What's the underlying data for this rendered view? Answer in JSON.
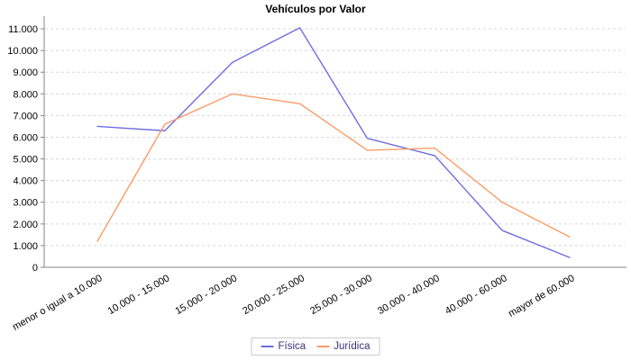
{
  "title": "Vehículos por Valor",
  "chart_data": {
    "type": "line",
    "title": "Vehículos por Valor",
    "xlabel": "",
    "ylabel": "",
    "categories": [
      "menor o igual a 10.000",
      "10.000 - 15.000",
      "15.000 - 20.000",
      "20.000 - 25.000",
      "25.000 - 30.000",
      "30.000 - 40.000",
      "40.000 - 60.000",
      "mayor de 60.000"
    ],
    "series": [
      {
        "name": "Física",
        "color": "#6D6DE2",
        "values": [
          6500,
          6300,
          9450,
          11050,
          5950,
          5150,
          1700,
          450
        ]
      },
      {
        "name": "Jurídica",
        "color": "#FA9C68",
        "values": [
          1200,
          6600,
          8000,
          7550,
          5400,
          5500,
          3000,
          1400
        ]
      }
    ],
    "ylim": [
      0,
      11500
    ],
    "ytick_step": 1000,
    "ytick_labels": [
      "0",
      "1.000",
      "2.000",
      "3.000",
      "4.000",
      "5.000",
      "6.000",
      "7.000",
      "8.000",
      "9.000",
      "10.000",
      "11.000"
    ],
    "grid": "horizontal-dashed",
    "legend_position": "bottom",
    "colors": {
      "axis": "#848484",
      "grid": "#d8d8d8",
      "tick_text": "#000000",
      "legend_text": "#3D3179",
      "legend_border": "#cccccc",
      "background": "#ffffff"
    }
  }
}
